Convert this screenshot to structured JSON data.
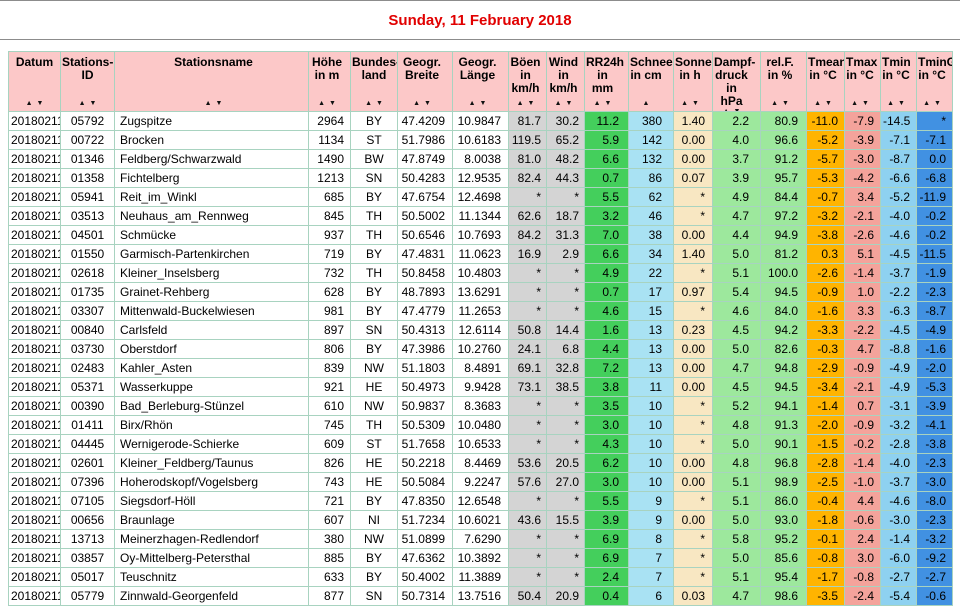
{
  "page_title": "Sunday, 11 February 2018",
  "colors": {
    "title_text": "#e10000",
    "header_bg": "#fcc8c8",
    "grid_border": "#a8d3c0",
    "col_gray": "#d4d4d4",
    "col_rr24h": "#44cf5c",
    "col_schnee": "#a9e2f3",
    "col_sonne": "#f8e7c2",
    "col_dampf": "#9de89d",
    "col_relf": "#9de89d",
    "col_tmean": "#ffb400",
    "col_tmax": "#f4a39b",
    "col_tmin": "#8ed1f0",
    "col_tming": "#4191e2"
  },
  "table": {
    "columns": [
      {
        "key": "datum",
        "label_lines": [
          "Datum"
        ],
        "sort": "both"
      },
      {
        "key": "stations_id",
        "label_lines": [
          "Stations-",
          "ID"
        ],
        "sort": "both"
      },
      {
        "key": "name",
        "label_lines": [
          "Stationsname"
        ],
        "sort": "both"
      },
      {
        "key": "hoehe",
        "label_lines": [
          "Höhe",
          "in m"
        ],
        "sort": "both"
      },
      {
        "key": "land",
        "label_lines": [
          "Bundes-",
          "land"
        ],
        "sort": "both"
      },
      {
        "key": "breite",
        "label_lines": [
          "Geogr.",
          "Breite"
        ],
        "sort": "both"
      },
      {
        "key": "laenge",
        "label_lines": [
          "Geogr.",
          "Länge"
        ],
        "sort": "both"
      },
      {
        "key": "boeen",
        "label_lines": [
          "Böen",
          "in",
          "km/h"
        ],
        "sort": "both"
      },
      {
        "key": "wind",
        "label_lines": [
          "Wind",
          "in",
          "km/h"
        ],
        "sort": "both"
      },
      {
        "key": "rr24h",
        "label_lines": [
          "RR24h",
          "in",
          "mm"
        ],
        "sort": "both"
      },
      {
        "key": "schnee",
        "label_lines": [
          "Schnee",
          "in cm"
        ],
        "sort": "asc"
      },
      {
        "key": "sonne",
        "label_lines": [
          "Sonne",
          "in h"
        ],
        "sort": "both"
      },
      {
        "key": "dampf",
        "label_lines": [
          "Dampf-",
          "druck",
          "in hPa"
        ],
        "sort": "both"
      },
      {
        "key": "relf",
        "label_lines": [
          "rel.F.",
          "in %"
        ],
        "sort": "both"
      },
      {
        "key": "tmean",
        "label_lines": [
          "Tmean",
          "in °C"
        ],
        "sort": "both"
      },
      {
        "key": "tmax",
        "label_lines": [
          "Tmax",
          "in °C"
        ],
        "sort": "both"
      },
      {
        "key": "tmin",
        "label_lines": [
          "Tmin",
          "in °C"
        ],
        "sort": "both"
      },
      {
        "key": "tming",
        "label_lines": [
          "TminG",
          "in °C"
        ],
        "sort": "both"
      }
    ],
    "rows": [
      {
        "datum": "20180211",
        "stations_id": "05792",
        "name": "Zugspitze",
        "hoehe": "2964",
        "land": "BY",
        "breite": "47.4209",
        "laenge": "10.9847",
        "boeen": "81.7",
        "wind": "30.2",
        "rr24h": "11.2",
        "schnee": "380",
        "sonne": "1.40",
        "dampf": "2.2",
        "relf": "80.9",
        "tmean": "-11.0",
        "tmax": "-7.9",
        "tmin": "-14.5",
        "tming": "*"
      },
      {
        "datum": "20180211",
        "stations_id": "00722",
        "name": "Brocken",
        "hoehe": "1134",
        "land": "ST",
        "breite": "51.7986",
        "laenge": "10.6183",
        "boeen": "119.5",
        "wind": "65.2",
        "rr24h": "5.9",
        "schnee": "142",
        "sonne": "0.00",
        "dampf": "4.0",
        "relf": "96.6",
        "tmean": "-5.2",
        "tmax": "-3.9",
        "tmin": "-7.1",
        "tming": "-7.1"
      },
      {
        "datum": "20180211",
        "stations_id": "01346",
        "name": "Feldberg/Schwarzwald",
        "hoehe": "1490",
        "land": "BW",
        "breite": "47.8749",
        "laenge": "8.0038",
        "boeen": "81.0",
        "wind": "48.2",
        "rr24h": "6.6",
        "schnee": "132",
        "sonne": "0.00",
        "dampf": "3.7",
        "relf": "91.2",
        "tmean": "-5.7",
        "tmax": "-3.0",
        "tmin": "-8.7",
        "tming": "0.0"
      },
      {
        "datum": "20180211",
        "stations_id": "01358",
        "name": "Fichtelberg",
        "hoehe": "1213",
        "land": "SN",
        "breite": "50.4283",
        "laenge": "12.9535",
        "boeen": "82.4",
        "wind": "44.3",
        "rr24h": "0.7",
        "schnee": "86",
        "sonne": "0.07",
        "dampf": "3.9",
        "relf": "95.7",
        "tmean": "-5.3",
        "tmax": "-4.2",
        "tmin": "-6.6",
        "tming": "-6.8"
      },
      {
        "datum": "20180211",
        "stations_id": "05941",
        "name": "Reit_im_Winkl",
        "hoehe": "685",
        "land": "BY",
        "breite": "47.6754",
        "laenge": "12.4698",
        "boeen": "*",
        "wind": "*",
        "rr24h": "5.5",
        "schnee": "62",
        "sonne": "*",
        "dampf": "4.9",
        "relf": "84.4",
        "tmean": "-0.7",
        "tmax": "3.4",
        "tmin": "-5.2",
        "tming": "-11.9"
      },
      {
        "datum": "20180211",
        "stations_id": "03513",
        "name": "Neuhaus_am_Rennweg",
        "hoehe": "845",
        "land": "TH",
        "breite": "50.5002",
        "laenge": "11.1344",
        "boeen": "62.6",
        "wind": "18.7",
        "rr24h": "3.2",
        "schnee": "46",
        "sonne": "*",
        "dampf": "4.7",
        "relf": "97.2",
        "tmean": "-3.2",
        "tmax": "-2.1",
        "tmin": "-4.0",
        "tming": "-0.2"
      },
      {
        "datum": "20180211",
        "stations_id": "04501",
        "name": "Schmücke",
        "hoehe": "937",
        "land": "TH",
        "breite": "50.6546",
        "laenge": "10.7693",
        "boeen": "84.2",
        "wind": "31.3",
        "rr24h": "7.0",
        "schnee": "38",
        "sonne": "0.00",
        "dampf": "4.4",
        "relf": "94.9",
        "tmean": "-3.8",
        "tmax": "-2.6",
        "tmin": "-4.6",
        "tming": "-0.2"
      },
      {
        "datum": "20180211",
        "stations_id": "01550",
        "name": "Garmisch-Partenkirchen",
        "hoehe": "719",
        "land": "BY",
        "breite": "47.4831",
        "laenge": "11.0623",
        "boeen": "16.9",
        "wind": "2.9",
        "rr24h": "6.6",
        "schnee": "34",
        "sonne": "1.40",
        "dampf": "5.0",
        "relf": "81.2",
        "tmean": "0.3",
        "tmax": "5.1",
        "tmin": "-4.5",
        "tming": "-11.5"
      },
      {
        "datum": "20180211",
        "stations_id": "02618",
        "name": "Kleiner_Inselsberg",
        "hoehe": "732",
        "land": "TH",
        "breite": "50.8458",
        "laenge": "10.4803",
        "boeen": "*",
        "wind": "*",
        "rr24h": "4.9",
        "schnee": "22",
        "sonne": "*",
        "dampf": "5.1",
        "relf": "100.0",
        "tmean": "-2.6",
        "tmax": "-1.4",
        "tmin": "-3.7",
        "tming": "-1.9"
      },
      {
        "datum": "20180211",
        "stations_id": "01735",
        "name": "Grainet-Rehberg",
        "hoehe": "628",
        "land": "BY",
        "breite": "48.7893",
        "laenge": "13.6291",
        "boeen": "*",
        "wind": "*",
        "rr24h": "0.7",
        "schnee": "17",
        "sonne": "0.97",
        "dampf": "5.4",
        "relf": "94.5",
        "tmean": "-0.9",
        "tmax": "1.0",
        "tmin": "-2.2",
        "tming": "-2.3"
      },
      {
        "datum": "20180211",
        "stations_id": "03307",
        "name": "Mittenwald-Buckelwiesen",
        "hoehe": "981",
        "land": "BY",
        "breite": "47.4779",
        "laenge": "11.2653",
        "boeen": "*",
        "wind": "*",
        "rr24h": "4.6",
        "schnee": "15",
        "sonne": "*",
        "dampf": "4.6",
        "relf": "84.0",
        "tmean": "-1.6",
        "tmax": "3.3",
        "tmin": "-6.3",
        "tming": "-8.7"
      },
      {
        "datum": "20180211",
        "stations_id": "00840",
        "name": "Carlsfeld",
        "hoehe": "897",
        "land": "SN",
        "breite": "50.4313",
        "laenge": "12.6114",
        "boeen": "50.8",
        "wind": "14.4",
        "rr24h": "1.6",
        "schnee": "13",
        "sonne": "0.23",
        "dampf": "4.5",
        "relf": "94.2",
        "tmean": "-3.3",
        "tmax": "-2.2",
        "tmin": "-4.5",
        "tming": "-4.9"
      },
      {
        "datum": "20180211",
        "stations_id": "03730",
        "name": "Oberstdorf",
        "hoehe": "806",
        "land": "BY",
        "breite": "47.3986",
        "laenge": "10.2760",
        "boeen": "24.1",
        "wind": "6.8",
        "rr24h": "4.4",
        "schnee": "13",
        "sonne": "0.00",
        "dampf": "5.0",
        "relf": "82.6",
        "tmean": "-0.3",
        "tmax": "4.7",
        "tmin": "-8.8",
        "tming": "-1.6"
      },
      {
        "datum": "20180211",
        "stations_id": "02483",
        "name": "Kahler_Asten",
        "hoehe": "839",
        "land": "NW",
        "breite": "51.1803",
        "laenge": "8.4891",
        "boeen": "69.1",
        "wind": "32.8",
        "rr24h": "7.2",
        "schnee": "13",
        "sonne": "0.00",
        "dampf": "4.7",
        "relf": "94.8",
        "tmean": "-2.9",
        "tmax": "-0.9",
        "tmin": "-4.9",
        "tming": "-2.0"
      },
      {
        "datum": "20180211",
        "stations_id": "05371",
        "name": "Wasserkuppe",
        "hoehe": "921",
        "land": "HE",
        "breite": "50.4973",
        "laenge": "9.9428",
        "boeen": "73.1",
        "wind": "38.5",
        "rr24h": "3.8",
        "schnee": "11",
        "sonne": "0.00",
        "dampf": "4.5",
        "relf": "94.5",
        "tmean": "-3.4",
        "tmax": "-2.1",
        "tmin": "-4.9",
        "tming": "-5.3"
      },
      {
        "datum": "20180211",
        "stations_id": "00390",
        "name": "Bad_Berleburg-Stünzel",
        "hoehe": "610",
        "land": "NW",
        "breite": "50.9837",
        "laenge": "8.3683",
        "boeen": "*",
        "wind": "*",
        "rr24h": "3.5",
        "schnee": "10",
        "sonne": "*",
        "dampf": "5.2",
        "relf": "94.1",
        "tmean": "-1.4",
        "tmax": "0.7",
        "tmin": "-3.1",
        "tming": "-3.9"
      },
      {
        "datum": "20180211",
        "stations_id": "01411",
        "name": "Birx/Rhön",
        "hoehe": "745",
        "land": "TH",
        "breite": "50.5309",
        "laenge": "10.0480",
        "boeen": "*",
        "wind": "*",
        "rr24h": "3.0",
        "schnee": "10",
        "sonne": "*",
        "dampf": "4.8",
        "relf": "91.3",
        "tmean": "-2.0",
        "tmax": "-0.9",
        "tmin": "-3.2",
        "tming": "-4.1"
      },
      {
        "datum": "20180211",
        "stations_id": "04445",
        "name": "Wernigerode-Schierke",
        "hoehe": "609",
        "land": "ST",
        "breite": "51.7658",
        "laenge": "10.6533",
        "boeen": "*",
        "wind": "*",
        "rr24h": "4.3",
        "schnee": "10",
        "sonne": "*",
        "dampf": "5.0",
        "relf": "90.1",
        "tmean": "-1.5",
        "tmax": "-0.2",
        "tmin": "-2.8",
        "tming": "-3.8"
      },
      {
        "datum": "20180211",
        "stations_id": "02601",
        "name": "Kleiner_Feldberg/Taunus",
        "hoehe": "826",
        "land": "HE",
        "breite": "50.2218",
        "laenge": "8.4469",
        "boeen": "53.6",
        "wind": "20.5",
        "rr24h": "6.2",
        "schnee": "10",
        "sonne": "0.00",
        "dampf": "4.8",
        "relf": "96.8",
        "tmean": "-2.8",
        "tmax": "-1.4",
        "tmin": "-4.0",
        "tming": "-2.3"
      },
      {
        "datum": "20180211",
        "stations_id": "07396",
        "name": "Hoherodskopf/Vogelsberg",
        "hoehe": "743",
        "land": "HE",
        "breite": "50.5084",
        "laenge": "9.2247",
        "boeen": "57.6",
        "wind": "27.0",
        "rr24h": "3.0",
        "schnee": "10",
        "sonne": "0.00",
        "dampf": "5.1",
        "relf": "98.9",
        "tmean": "-2.5",
        "tmax": "-1.0",
        "tmin": "-3.7",
        "tming": "-3.0"
      },
      {
        "datum": "20180211",
        "stations_id": "07105",
        "name": "Siegsdorf-Höll",
        "hoehe": "721",
        "land": "BY",
        "breite": "47.8350",
        "laenge": "12.6548",
        "boeen": "*",
        "wind": "*",
        "rr24h": "5.5",
        "schnee": "9",
        "sonne": "*",
        "dampf": "5.1",
        "relf": "86.0",
        "tmean": "-0.4",
        "tmax": "4.4",
        "tmin": "-4.6",
        "tming": "-8.0"
      },
      {
        "datum": "20180211",
        "stations_id": "00656",
        "name": "Braunlage",
        "hoehe": "607",
        "land": "NI",
        "breite": "51.7234",
        "laenge": "10.6021",
        "boeen": "43.6",
        "wind": "15.5",
        "rr24h": "3.9",
        "schnee": "9",
        "sonne": "0.00",
        "dampf": "5.0",
        "relf": "93.0",
        "tmean": "-1.8",
        "tmax": "-0.6",
        "tmin": "-3.0",
        "tming": "-2.3"
      },
      {
        "datum": "20180211",
        "stations_id": "13713",
        "name": "Meinerzhagen-Redlendorf",
        "hoehe": "380",
        "land": "NW",
        "breite": "51.0899",
        "laenge": "7.6290",
        "boeen": "*",
        "wind": "*",
        "rr24h": "6.9",
        "schnee": "8",
        "sonne": "*",
        "dampf": "5.8",
        "relf": "95.2",
        "tmean": "-0.1",
        "tmax": "2.4",
        "tmin": "-1.4",
        "tming": "-3.2"
      },
      {
        "datum": "20180211",
        "stations_id": "03857",
        "name": "Oy-Mittelberg-Petersthal",
        "hoehe": "885",
        "land": "BY",
        "breite": "47.6362",
        "laenge": "10.3892",
        "boeen": "*",
        "wind": "*",
        "rr24h": "6.9",
        "schnee": "7",
        "sonne": "*",
        "dampf": "5.0",
        "relf": "85.6",
        "tmean": "-0.8",
        "tmax": "3.0",
        "tmin": "-6.0",
        "tming": "-9.2"
      },
      {
        "datum": "20180211",
        "stations_id": "05017",
        "name": "Teuschnitz",
        "hoehe": "633",
        "land": "BY",
        "breite": "50.4002",
        "laenge": "11.3889",
        "boeen": "*",
        "wind": "*",
        "rr24h": "2.4",
        "schnee": "7",
        "sonne": "*",
        "dampf": "5.1",
        "relf": "95.4",
        "tmean": "-1.7",
        "tmax": "-0.8",
        "tmin": "-2.7",
        "tming": "-2.7"
      },
      {
        "datum": "20180211",
        "stations_id": "05779",
        "name": "Zinnwald-Georgenfeld",
        "hoehe": "877",
        "land": "SN",
        "breite": "50.7314",
        "laenge": "13.7516",
        "boeen": "50.4",
        "wind": "20.9",
        "rr24h": "0.4",
        "schnee": "6",
        "sonne": "0.03",
        "dampf": "4.7",
        "relf": "98.6",
        "tmean": "-3.5",
        "tmax": "-2.4",
        "tmin": "-5.4",
        "tming": "-0.6"
      }
    ]
  },
  "icons": {
    "sort_asc": "▲",
    "sort_desc": "▼"
  }
}
